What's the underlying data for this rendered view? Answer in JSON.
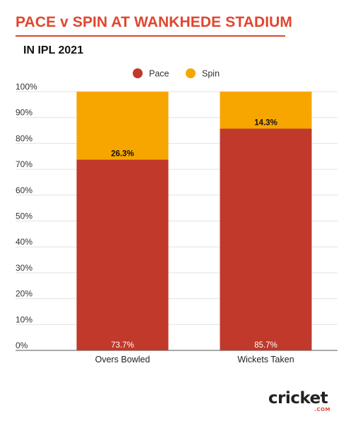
{
  "header": {
    "title": "PACE v SPIN AT WANKHEDE STADIUM",
    "subtitle": "IN IPL 2021"
  },
  "brand": {
    "logo_text": "cricket",
    "logo_suffix": ".COM"
  },
  "colors": {
    "pace": "#c0392b",
    "spin": "#f7a600",
    "accent": "#e0462f"
  },
  "chart_data": {
    "type": "bar",
    "stacked": true,
    "categories": [
      "Overs Bowled",
      "Wickets Taken"
    ],
    "series": [
      {
        "name": "Pace",
        "values": [
          73.7,
          85.7
        ],
        "labels": [
          "73.7%",
          "85.7%"
        ]
      },
      {
        "name": "Spin",
        "values": [
          26.3,
          14.3
        ],
        "labels": [
          "26.3%",
          "14.3%"
        ]
      }
    ],
    "title": "PACE v SPIN AT WANKHEDE STADIUM",
    "subtitle": "IN IPL 2021",
    "ylim": [
      0,
      100
    ],
    "yticks": [
      "0%",
      "10%",
      "20%",
      "30%",
      "40%",
      "50%",
      "60%",
      "70%",
      "80%",
      "90%",
      "100%"
    ],
    "grid": true,
    "legend": "top-center"
  }
}
